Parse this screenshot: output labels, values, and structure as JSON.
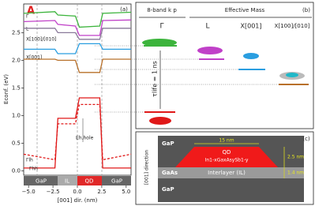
{
  "chart_data": {
    "type": "line",
    "panel_label": "(a)",
    "tag": "A",
    "ylabel": "Econf. (eV)",
    "xlabel": "[001] dir. (nm)",
    "xlim": [
      -5.5,
      5.5
    ],
    "ylim": [
      -0.08,
      3.02
    ],
    "xticks": [
      {
        "value": -5,
        "label": "−5.0"
      },
      {
        "value": -2.5,
        "label": "−2.5"
      },
      {
        "value": 0,
        "label": "0.0"
      },
      2.5,
      {
        "value": 5,
        "label": "5.0"
      }
    ],
    "yticks": [
      {
        "value": 0,
        "label": "0.0"
      },
      0.5,
      {
        "value": 1,
        "label": "1.0"
      },
      1.5,
      {
        "value": 2,
        "label": "2.0"
      },
      2.5
    ],
    "x": [
      -5.5,
      -2.3,
      -2.0,
      -0.2,
      0.2,
      2.3,
      2.6,
      5.5
    ],
    "series": [
      {
        "name": "Γ",
        "color": "#3cb43c",
        "values": [
          2.85,
          2.88,
          2.82,
          2.8,
          2.6,
          2.62,
          2.85,
          2.87
        ]
      },
      {
        "name": "L",
        "color": "#c040c8",
        "values": [
          2.7,
          2.72,
          2.65,
          2.62,
          2.45,
          2.45,
          2.72,
          2.73
        ]
      },
      {
        "name": "X[100]/[010]",
        "color": "#8a7a9a",
        "values": [
          2.58,
          2.58,
          2.5,
          2.5,
          2.38,
          2.38,
          2.58,
          2.58
        ]
      },
      {
        "name": "X[001]",
        "color": "#2a9ee0",
        "values": [
          2.2,
          2.2,
          2.12,
          2.12,
          2.3,
          2.3,
          2.2,
          2.2
        ]
      },
      {
        "color": "#b8702a",
        "values": [
          2.02,
          2.02,
          2.0,
          2.0,
          1.78,
          1.78,
          2.02,
          2.02
        ]
      },
      {
        "name": "Γhh",
        "color": "#e01818",
        "values": [
          0.05,
          0.05,
          0.95,
          0.95,
          1.32,
          1.32,
          0.05,
          0.05
        ]
      },
      {
        "name": "Γlh",
        "color": "#e01818",
        "dashed": true,
        "values": [
          0.3,
          0.2,
          0.85,
          0.85,
          1.2,
          1.2,
          0.2,
          0.3
        ]
      }
    ],
    "annotation": "Eh,hole",
    "regions": [
      "GaP",
      "IL",
      "QD",
      "GaP"
    ]
  },
  "panel_b": {
    "label": "(b)",
    "method_kp": "8-band k p",
    "method_em": "Effective Mass",
    "columns": [
      "Γ",
      "L",
      "X[001]",
      "X[100]/[010]"
    ],
    "lifetime": "τlife = 1 ns"
  },
  "panel_c": {
    "label": "(c)",
    "axis": "[001] direction",
    "top": "GaP",
    "qd": "QD",
    "composition": "In1-xGaxAsySb1-y",
    "il_material": "GaAs",
    "il_name": "Interlayer (IL)",
    "bottom": "GaP",
    "width": "15 nm",
    "height": "2.5 nm",
    "il_thickness": "1.4 nm"
  }
}
